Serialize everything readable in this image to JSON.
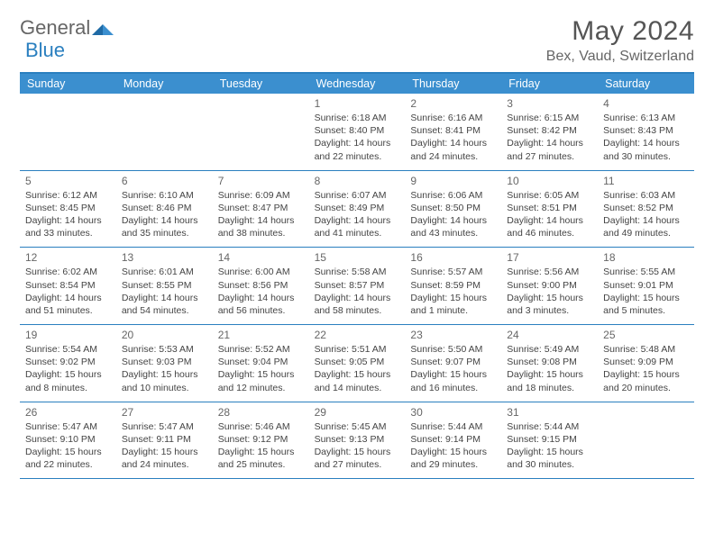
{
  "logo": {
    "word1": "General",
    "word2": "Blue"
  },
  "title": "May 2024",
  "location": "Bex, Vaud, Switzerland",
  "colors": {
    "header_bg": "#3b8fcf",
    "header_text": "#ffffff",
    "border": "#2a7fbf",
    "text": "#444444",
    "daynum": "#666666",
    "title_text": "#555555",
    "logo_gray": "#666666",
    "logo_blue": "#2a7fbf",
    "page_bg": "#ffffff"
  },
  "typography": {
    "title_fontsize": 30,
    "location_fontsize": 16,
    "dayheader_fontsize": 12.5,
    "daynum_fontsize": 12,
    "info_fontsize": 10.5
  },
  "day_labels": [
    "Sunday",
    "Monday",
    "Tuesday",
    "Wednesday",
    "Thursday",
    "Friday",
    "Saturday"
  ],
  "weeks": [
    [
      null,
      null,
      null,
      {
        "n": "1",
        "sunrise": "6:18 AM",
        "sunset": "8:40 PM",
        "daylight": "14 hours and 22 minutes."
      },
      {
        "n": "2",
        "sunrise": "6:16 AM",
        "sunset": "8:41 PM",
        "daylight": "14 hours and 24 minutes."
      },
      {
        "n": "3",
        "sunrise": "6:15 AM",
        "sunset": "8:42 PM",
        "daylight": "14 hours and 27 minutes."
      },
      {
        "n": "4",
        "sunrise": "6:13 AM",
        "sunset": "8:43 PM",
        "daylight": "14 hours and 30 minutes."
      }
    ],
    [
      {
        "n": "5",
        "sunrise": "6:12 AM",
        "sunset": "8:45 PM",
        "daylight": "14 hours and 33 minutes."
      },
      {
        "n": "6",
        "sunrise": "6:10 AM",
        "sunset": "8:46 PM",
        "daylight": "14 hours and 35 minutes."
      },
      {
        "n": "7",
        "sunrise": "6:09 AM",
        "sunset": "8:47 PM",
        "daylight": "14 hours and 38 minutes."
      },
      {
        "n": "8",
        "sunrise": "6:07 AM",
        "sunset": "8:49 PM",
        "daylight": "14 hours and 41 minutes."
      },
      {
        "n": "9",
        "sunrise": "6:06 AM",
        "sunset": "8:50 PM",
        "daylight": "14 hours and 43 minutes."
      },
      {
        "n": "10",
        "sunrise": "6:05 AM",
        "sunset": "8:51 PM",
        "daylight": "14 hours and 46 minutes."
      },
      {
        "n": "11",
        "sunrise": "6:03 AM",
        "sunset": "8:52 PM",
        "daylight": "14 hours and 49 minutes."
      }
    ],
    [
      {
        "n": "12",
        "sunrise": "6:02 AM",
        "sunset": "8:54 PM",
        "daylight": "14 hours and 51 minutes."
      },
      {
        "n": "13",
        "sunrise": "6:01 AM",
        "sunset": "8:55 PM",
        "daylight": "14 hours and 54 minutes."
      },
      {
        "n": "14",
        "sunrise": "6:00 AM",
        "sunset": "8:56 PM",
        "daylight": "14 hours and 56 minutes."
      },
      {
        "n": "15",
        "sunrise": "5:58 AM",
        "sunset": "8:57 PM",
        "daylight": "14 hours and 58 minutes."
      },
      {
        "n": "16",
        "sunrise": "5:57 AM",
        "sunset": "8:59 PM",
        "daylight": "15 hours and 1 minute."
      },
      {
        "n": "17",
        "sunrise": "5:56 AM",
        "sunset": "9:00 PM",
        "daylight": "15 hours and 3 minutes."
      },
      {
        "n": "18",
        "sunrise": "5:55 AM",
        "sunset": "9:01 PM",
        "daylight": "15 hours and 5 minutes."
      }
    ],
    [
      {
        "n": "19",
        "sunrise": "5:54 AM",
        "sunset": "9:02 PM",
        "daylight": "15 hours and 8 minutes."
      },
      {
        "n": "20",
        "sunrise": "5:53 AM",
        "sunset": "9:03 PM",
        "daylight": "15 hours and 10 minutes."
      },
      {
        "n": "21",
        "sunrise": "5:52 AM",
        "sunset": "9:04 PM",
        "daylight": "15 hours and 12 minutes."
      },
      {
        "n": "22",
        "sunrise": "5:51 AM",
        "sunset": "9:05 PM",
        "daylight": "15 hours and 14 minutes."
      },
      {
        "n": "23",
        "sunrise": "5:50 AM",
        "sunset": "9:07 PM",
        "daylight": "15 hours and 16 minutes."
      },
      {
        "n": "24",
        "sunrise": "5:49 AM",
        "sunset": "9:08 PM",
        "daylight": "15 hours and 18 minutes."
      },
      {
        "n": "25",
        "sunrise": "5:48 AM",
        "sunset": "9:09 PM",
        "daylight": "15 hours and 20 minutes."
      }
    ],
    [
      {
        "n": "26",
        "sunrise": "5:47 AM",
        "sunset": "9:10 PM",
        "daylight": "15 hours and 22 minutes."
      },
      {
        "n": "27",
        "sunrise": "5:47 AM",
        "sunset": "9:11 PM",
        "daylight": "15 hours and 24 minutes."
      },
      {
        "n": "28",
        "sunrise": "5:46 AM",
        "sunset": "9:12 PM",
        "daylight": "15 hours and 25 minutes."
      },
      {
        "n": "29",
        "sunrise": "5:45 AM",
        "sunset": "9:13 PM",
        "daylight": "15 hours and 27 minutes."
      },
      {
        "n": "30",
        "sunrise": "5:44 AM",
        "sunset": "9:14 PM",
        "daylight": "15 hours and 29 minutes."
      },
      {
        "n": "31",
        "sunrise": "5:44 AM",
        "sunset": "9:15 PM",
        "daylight": "15 hours and 30 minutes."
      },
      null
    ]
  ],
  "labels": {
    "sunrise": "Sunrise:",
    "sunset": "Sunset:",
    "daylight": "Daylight:"
  }
}
